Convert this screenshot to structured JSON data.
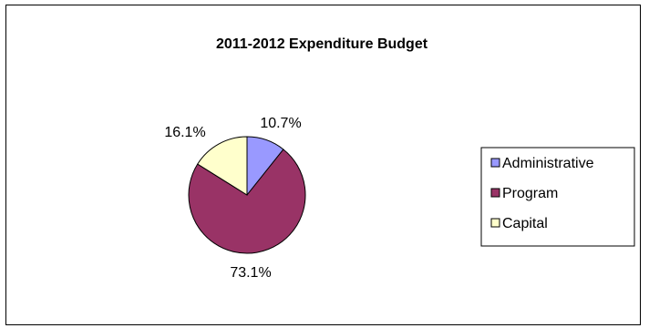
{
  "chart_data": {
    "type": "pie",
    "title": "2011-2012 Expenditure Budget",
    "categories": [
      "Administrative",
      "Program",
      "Capital"
    ],
    "values": [
      10.7,
      73.1,
      16.1
    ],
    "data_labels": [
      "10.7%",
      "73.1%",
      "16.1%"
    ],
    "colors": [
      "#9999ff",
      "#993366",
      "#ffffcc"
    ],
    "legend_position": "right"
  }
}
